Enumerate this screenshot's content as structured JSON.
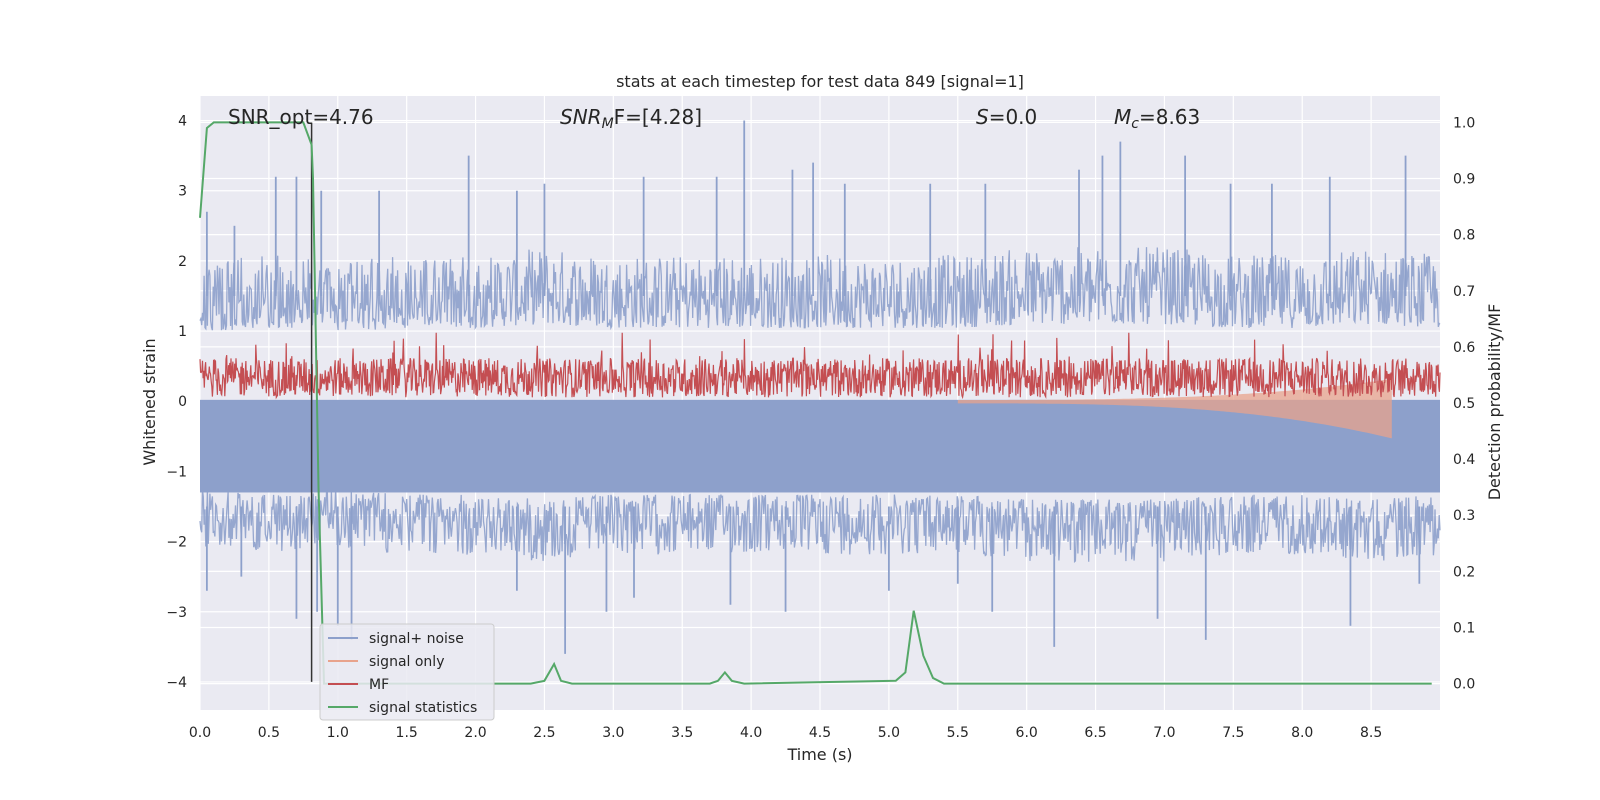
{
  "chart_data": {
    "type": "line",
    "title": "stats at each timestep for test data 849 [signal=1]",
    "xlabel": "Time (s)",
    "ylabel": "Whitened strain",
    "ylabel_right": "Detection probability/MF",
    "xlim": [
      0.0,
      9.0
    ],
    "ylim": [
      -4.4,
      4.35
    ],
    "ylim_right": [
      -0.047,
      1.047
    ],
    "x_ticks": [
      "0.0",
      "0.5",
      "1.0",
      "1.5",
      "2.0",
      "2.5",
      "3.0",
      "3.5",
      "4.0",
      "4.5",
      "5.0",
      "5.5",
      "6.0",
      "6.5",
      "7.0",
      "7.5",
      "8.0",
      "8.5"
    ],
    "y_ticks": [
      "4",
      "3",
      "2",
      "1",
      "0",
      "−1",
      "−2",
      "−3",
      "−4"
    ],
    "y_ticks_right": [
      "1.0",
      "0.9",
      "0.8",
      "0.7",
      "0.6",
      "0.5",
      "0.4",
      "0.3",
      "0.2",
      "0.1",
      "0.0"
    ],
    "grid": true,
    "legend_position": "lower-left",
    "annotations": {
      "snr_opt": "SNR_opt=4.76",
      "snr_mf_main": "SNR",
      "snr_mf_sub": "M",
      "snr_mf_rest": "F=[4.28]",
      "s_var": "S",
      "s_rest": "=0.0",
      "mc_var": "M",
      "mc_sub": "c",
      "mc_rest": "=8.63"
    },
    "marker_time": 0.81,
    "series": [
      {
        "name": "signal+ noise",
        "color": "#8da0cb",
        "description_level": "whitened strain noise approx between -3.5 and 4.0",
        "envelope_upper": [
          [
            0.0,
            1.8
          ],
          [
            0.5,
            1.9
          ],
          [
            1.0,
            1.8
          ],
          [
            1.5,
            1.9
          ],
          [
            2.0,
            1.9
          ],
          [
            2.5,
            2.0
          ],
          [
            3.0,
            1.9
          ],
          [
            3.5,
            1.9
          ],
          [
            4.0,
            1.9
          ],
          [
            4.5,
            1.9
          ],
          [
            5.0,
            1.9
          ],
          [
            5.5,
            1.9
          ],
          [
            6.0,
            2.0
          ],
          [
            6.5,
            2.0
          ],
          [
            7.0,
            2.0
          ],
          [
            7.5,
            1.9
          ],
          [
            8.0,
            1.9
          ],
          [
            8.5,
            2.0
          ],
          [
            9.0,
            1.9
          ]
        ],
        "spikes_up": [
          [
            0.05,
            2.7
          ],
          [
            0.25,
            2.5
          ],
          [
            0.55,
            3.2
          ],
          [
            0.7,
            3.2
          ],
          [
            0.88,
            3.0
          ],
          [
            1.3,
            3.0
          ],
          [
            1.95,
            3.5
          ],
          [
            2.3,
            3.0
          ],
          [
            2.5,
            3.1
          ],
          [
            3.22,
            3.2
          ],
          [
            3.75,
            3.2
          ],
          [
            3.95,
            4.0
          ],
          [
            4.3,
            3.3
          ],
          [
            4.45,
            3.4
          ],
          [
            4.68,
            3.1
          ],
          [
            5.3,
            3.1
          ],
          [
            5.7,
            3.1
          ],
          [
            6.38,
            3.3
          ],
          [
            6.55,
            3.5
          ],
          [
            6.68,
            3.7
          ],
          [
            7.15,
            3.5
          ],
          [
            7.48,
            3.1
          ],
          [
            7.78,
            3.1
          ],
          [
            8.2,
            3.2
          ],
          [
            8.75,
            3.5
          ]
        ],
        "spikes_down": [
          [
            0.05,
            -2.7
          ],
          [
            0.3,
            -2.5
          ],
          [
            0.7,
            -3.1
          ],
          [
            0.85,
            -3.0
          ],
          [
            1.0,
            -3.2
          ],
          [
            1.1,
            -3.4
          ],
          [
            2.3,
            -2.7
          ],
          [
            2.65,
            -3.6
          ],
          [
            2.95,
            -3.0
          ],
          [
            3.15,
            -2.8
          ],
          [
            3.85,
            -2.9
          ],
          [
            4.25,
            -3.0
          ],
          [
            5.0,
            -2.7
          ],
          [
            5.5,
            -2.6
          ],
          [
            5.75,
            -3.0
          ],
          [
            6.2,
            -3.5
          ],
          [
            6.95,
            -3.1
          ],
          [
            7.3,
            -3.4
          ],
          [
            8.35,
            -3.2
          ],
          [
            8.85,
            -2.6
          ]
        ]
      },
      {
        "name": "signal only",
        "color": "#e8a38c",
        "chirp_start": 5.5,
        "chirp_end": 8.65,
        "chirp_peak_amplitude": 0.5
      },
      {
        "name": "MF",
        "color": "#c44e52",
        "band_right_axis": [
          0.5,
          0.6
        ],
        "band_center_right_axis": 0.545
      },
      {
        "name": "signal statistics",
        "color": "#55a868",
        "x": [
          0.0,
          0.05,
          0.1,
          0.5,
          0.75,
          0.81,
          0.82,
          0.86,
          0.9,
          2.4,
          2.5,
          2.57,
          2.62,
          2.7,
          3.7,
          3.76,
          3.81,
          3.86,
          3.95,
          5.05,
          5.12,
          5.18,
          5.25,
          5.32,
          5.4,
          8.94
        ],
        "y": [
          0.83,
          0.99,
          1.0,
          1.0,
          1.0,
          0.96,
          0.9,
          0.35,
          0.0,
          0.0,
          0.005,
          0.035,
          0.005,
          0.0,
          0.0,
          0.005,
          0.02,
          0.005,
          0.0,
          0.005,
          0.02,
          0.13,
          0.05,
          0.01,
          0.0,
          0.0
        ]
      }
    ]
  }
}
